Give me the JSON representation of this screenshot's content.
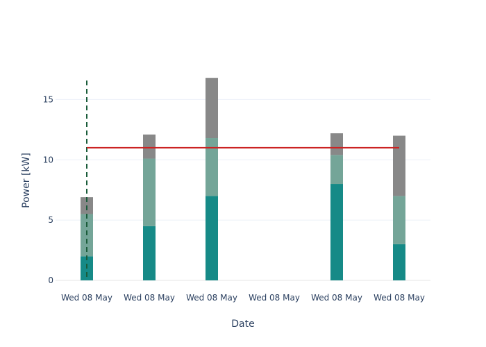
{
  "chart_data": {
    "type": "bar",
    "stacked": true,
    "title": "",
    "xlabel": "Date",
    "ylabel": "Power [kW]",
    "categories": [
      "Wed 08 May",
      "Wed 08 May",
      "Wed 08 May",
      "Wed 08 May",
      "Wed 08 May",
      "Wed 08 May"
    ],
    "ylim": [
      0,
      17.5
    ],
    "yticks": [
      0,
      5,
      10,
      15
    ],
    "grid": true,
    "legend": "none",
    "series": [
      {
        "color": "#168a87",
        "values": [
          2.0,
          4.5,
          7.0,
          0,
          8.0,
          3.0
        ]
      },
      {
        "color": "#74a598",
        "values": [
          3.5,
          5.6,
          4.8,
          0,
          2.4,
          4.0
        ]
      },
      {
        "color": "#888888",
        "values": [
          1.4,
          2.0,
          5.0,
          0,
          1.8,
          5.0
        ]
      }
    ],
    "reference_line": {
      "color": "#cc2222",
      "y": 11,
      "from_index": 0,
      "to_index": 5
    },
    "marker_line": {
      "color": "#1a5c3a",
      "style": "dashed",
      "index": 0
    }
  }
}
